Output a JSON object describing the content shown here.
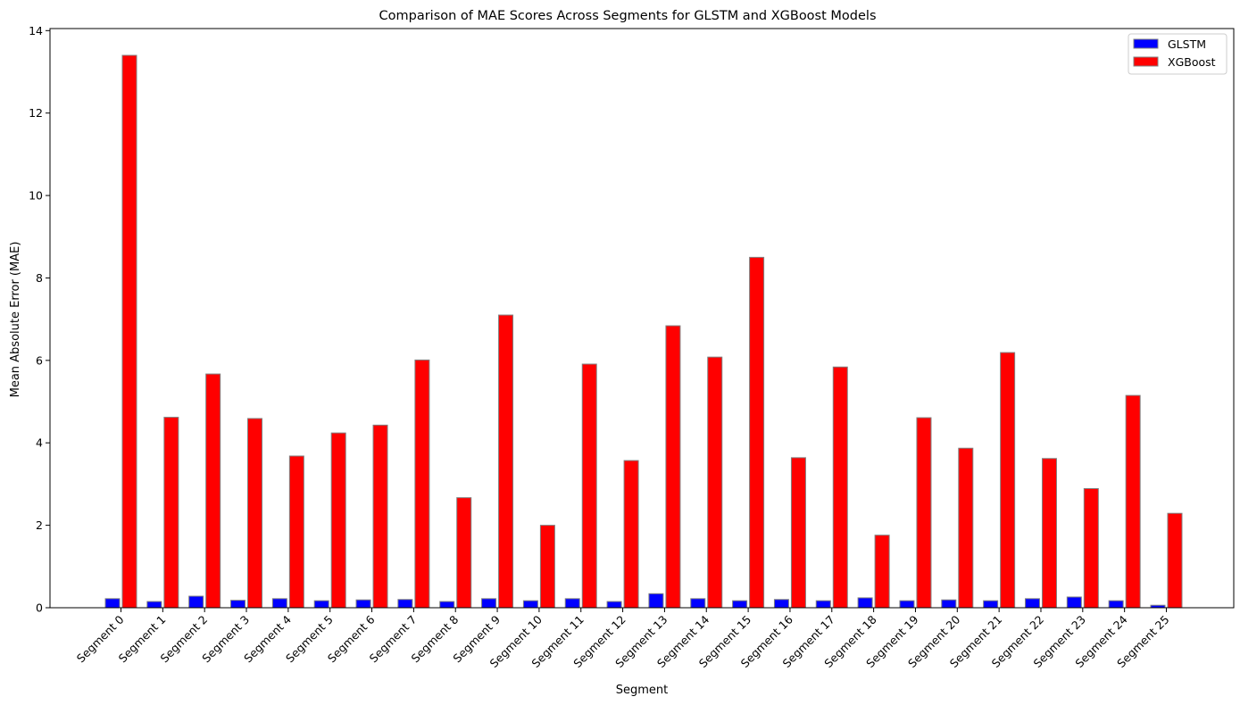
{
  "chart_data": {
    "type": "bar",
    "title": "Comparison of MAE Scores Across Segments for GLSTM and XGBoost Models",
    "xlabel": "Segment",
    "ylabel": "Mean Absolute Error (MAE)",
    "ylim": [
      0,
      14.05
    ],
    "yticks": [
      0,
      2,
      4,
      6,
      8,
      10,
      12,
      14
    ],
    "legend_position": "top-right",
    "grid": false,
    "categories": [
      "Segment 0",
      "Segment 1",
      "Segment 2",
      "Segment 3",
      "Segment 4",
      "Segment 5",
      "Segment 6",
      "Segment 7",
      "Segment 8",
      "Segment 9",
      "Segment 10",
      "Segment 11",
      "Segment 12",
      "Segment 13",
      "Segment 14",
      "Segment 15",
      "Segment 16",
      "Segment 17",
      "Segment 18",
      "Segment 19",
      "Segment 20",
      "Segment 21",
      "Segment 22",
      "Segment 23",
      "Segment 24",
      "Segment 25"
    ],
    "series": [
      {
        "name": "GLSTM",
        "color": "#0000ff",
        "values": [
          0.22,
          0.15,
          0.28,
          0.18,
          0.22,
          0.17,
          0.19,
          0.2,
          0.15,
          0.22,
          0.17,
          0.22,
          0.15,
          0.34,
          0.22,
          0.17,
          0.2,
          0.17,
          0.24,
          0.17,
          0.19,
          0.17,
          0.22,
          0.26,
          0.17,
          0.06
        ]
      },
      {
        "name": "XGBoost",
        "color": "#ff0000",
        "values": [
          13.4,
          4.62,
          5.67,
          4.59,
          3.68,
          4.24,
          4.43,
          6.01,
          2.67,
          7.1,
          2.0,
          5.91,
          3.57,
          6.84,
          6.08,
          8.5,
          3.64,
          5.84,
          1.76,
          4.61,
          3.87,
          6.19,
          3.62,
          2.89,
          5.15,
          2.29
        ]
      }
    ],
    "edge_color": "#808080"
  }
}
